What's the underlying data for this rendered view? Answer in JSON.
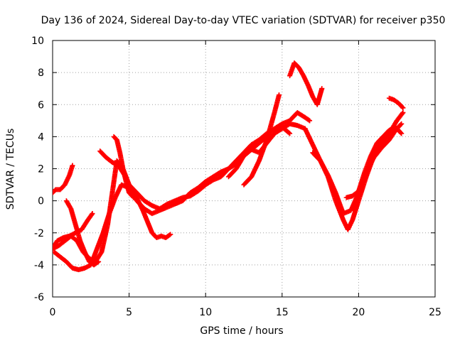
{
  "chart_data": {
    "type": "scatter",
    "title": "Day 136 of 2024, Sidereal Day-to-day VTEC variation (SDTVAR) for receiver p350",
    "xlabel": "GPS time / hours",
    "ylabel": "SDTVAR / TECUs",
    "xlim": [
      0,
      25
    ],
    "ylim": [
      -6,
      10
    ],
    "xticks": [
      "0",
      "5",
      "10",
      "15",
      "20",
      "25"
    ],
    "yticks": [
      "-6",
      "-4",
      "-2",
      "0",
      "2",
      "4",
      "6",
      "8",
      "10"
    ],
    "grid": true,
    "marker": "+",
    "color": "#ff0000",
    "series": [
      {
        "x": [
          0.0,
          0.2,
          0.5,
          0.8,
          1.1,
          1.3
        ],
        "y": [
          0.5,
          0.7,
          0.7,
          1.0,
          1.6,
          2.2
        ]
      },
      {
        "x": [
          0.0,
          0.4,
          0.8,
          1.2,
          1.6,
          2.0,
          2.4,
          2.8,
          3.2,
          3.6,
          3.9,
          4.2,
          4.6,
          5.0,
          5.5,
          6.0,
          6.5,
          7.0,
          7.5,
          8.0,
          8.5,
          9.0,
          9.5,
          10.0,
          10.5,
          11.0,
          11.5,
          12.0,
          12.5,
          13.0,
          13.5,
          14.0,
          14.5,
          15.0,
          15.5,
          16.0,
          16.5,
          16.8
        ],
        "y": [
          -3.0,
          -2.8,
          -2.5,
          -2.2,
          -2.5,
          -3.2,
          -3.6,
          -3.8,
          -3.2,
          -1.5,
          0.5,
          2.5,
          2.0,
          1.0,
          0.5,
          0.0,
          -0.3,
          -0.5,
          -0.2,
          0.0,
          0.2,
          0.3,
          0.6,
          1.0,
          1.3,
          1.5,
          2.0,
          2.5,
          3.0,
          3.5,
          3.8,
          4.2,
          4.5,
          4.8,
          5.0,
          5.5,
          5.2,
          5.0
        ]
      },
      {
        "x": [
          0.1,
          0.5,
          0.9,
          1.3,
          1.7,
          2.1,
          2.5,
          2.9,
          3.3,
          3.7,
          4.1,
          4.5,
          5.0,
          5.5,
          6.0,
          6.5,
          7.0,
          7.5,
          8.0,
          8.5,
          9.0,
          9.5,
          10.0,
          10.5,
          11.0,
          11.5,
          12.0,
          12.5,
          13.0,
          13.5,
          14.0,
          14.5,
          15.0,
          15.5,
          16.0,
          16.5
        ],
        "y": [
          -3.2,
          -3.5,
          -3.8,
          -4.2,
          -4.3,
          -4.2,
          -4.0,
          -3.0,
          -2.0,
          -0.8,
          0.2,
          1.0,
          0.8,
          0.0,
          -0.5,
          -0.8,
          -0.6,
          -0.4,
          -0.2,
          0.0,
          0.5,
          0.8,
          1.2,
          1.5,
          1.8,
          2.0,
          2.3,
          2.8,
          3.2,
          3.6,
          4.0,
          4.2,
          4.5,
          4.8,
          4.7,
          4.5
        ]
      },
      {
        "x": [
          0.0,
          0.3,
          0.7,
          1.1,
          1.5,
          1.9,
          2.3,
          2.6
        ],
        "y": [
          -3.0,
          -2.5,
          -2.3,
          -2.2,
          -2.0,
          -1.8,
          -1.2,
          -0.8
        ]
      },
      {
        "x": [
          0.9,
          1.2,
          1.5,
          1.8,
          2.1,
          2.4,
          2.7,
          3.0
        ],
        "y": [
          0.0,
          -0.5,
          -1.5,
          -2.5,
          -3.2,
          -3.8,
          -4.0,
          -3.8
        ]
      },
      {
        "x": [
          3.1,
          3.5,
          3.9,
          4.3,
          4.7,
          5.0,
          5.3,
          5.6,
          5.9,
          6.2,
          6.5,
          6.8,
          7.1,
          7.4,
          7.7
        ],
        "y": [
          3.1,
          2.7,
          2.4,
          2.2,
          1.6,
          1.0,
          0.5,
          0.0,
          -0.6,
          -1.3,
          -2.0,
          -2.3,
          -2.2,
          -2.3,
          -2.1
        ]
      },
      {
        "x": [
          4.0,
          4.2,
          4.4,
          4.6,
          4.8,
          5.0,
          5.3
        ],
        "y": [
          4.0,
          3.8,
          3.0,
          2.0,
          1.2,
          0.5,
          0.2
        ]
      },
      {
        "x": [
          12.5,
          13.0,
          13.5,
          14.0,
          14.5,
          14.8
        ],
        "y": [
          1.0,
          1.5,
          2.5,
          3.8,
          5.5,
          6.6
        ]
      },
      {
        "x": [
          15.5,
          15.8,
          16.1,
          16.4,
          16.7,
          17.0,
          17.3,
          17.6
        ],
        "y": [
          7.8,
          8.6,
          8.3,
          7.8,
          7.2,
          6.5,
          6.0,
          7.0
        ]
      },
      {
        "x": [
          16.5,
          17.0,
          17.5,
          18.0,
          18.5,
          19.0,
          19.3,
          19.6,
          20.0,
          20.5,
          21.0,
          21.5,
          22.0,
          22.5,
          22.9
        ],
        "y": [
          4.5,
          3.5,
          2.5,
          1.5,
          0.0,
          -1.2,
          -1.8,
          -1.2,
          0.0,
          1.5,
          2.8,
          3.6,
          4.2,
          5.0,
          5.5
        ]
      },
      {
        "x": [
          17.0,
          17.5,
          18.0,
          18.5,
          19.0,
          19.5,
          20.0,
          20.5,
          21.0,
          21.5,
          22.0,
          22.5,
          22.8
        ],
        "y": [
          3.0,
          2.5,
          1.6,
          0.5,
          -0.8,
          -0.6,
          0.5,
          1.8,
          2.7,
          3.3,
          3.8,
          4.5,
          4.8
        ]
      },
      {
        "x": [
          19.2,
          19.6,
          20.0,
          20.4,
          20.8,
          21.2,
          21.6,
          22.0,
          22.4,
          22.8
        ],
        "y": [
          0.2,
          0.3,
          0.6,
          1.8,
          2.8,
          3.6,
          4.0,
          4.4,
          4.6,
          4.2
        ]
      },
      {
        "x": [
          22.0,
          22.3,
          22.6,
          22.9
        ],
        "y": [
          6.4,
          6.3,
          6.1,
          5.8
        ]
      },
      {
        "x": [
          11.5,
          12.0,
          12.5,
          13.0,
          13.5,
          14.0,
          14.5,
          15.0,
          15.5
        ],
        "y": [
          1.5,
          2.0,
          2.8,
          3.2,
          3.0,
          3.6,
          4.2,
          4.6,
          4.2
        ]
      }
    ]
  }
}
